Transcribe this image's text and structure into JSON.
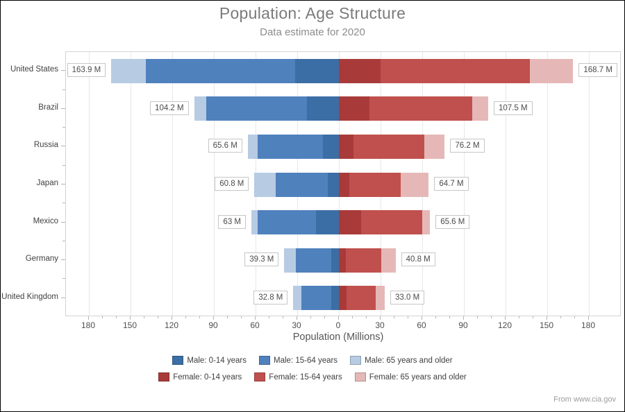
{
  "title": "Population: Age Structure",
  "subtitle": "Data estimate for 2020",
  "attribution": "From www.cia.gov",
  "x_axis": {
    "label": "Population (Millions)",
    "tick_labels": [
      "180",
      "150",
      "120",
      "90",
      "60",
      "30",
      "0",
      "30",
      "60",
      "90",
      "120",
      "150",
      "180"
    ],
    "major_step": 30,
    "minor_step": 10,
    "max_each_side": 180
  },
  "legend": [
    {
      "label": "Male: 0-14 years",
      "color": "#3b6ea5"
    },
    {
      "label": "Male: 15-64 years",
      "color": "#4f81bd"
    },
    {
      "label": "Male: 65 years and older",
      "color": "#b7cbe3"
    },
    {
      "label": "Female: 0-14 years",
      "color": "#a83b39"
    },
    {
      "label": "Female: 15-64 years",
      "color": "#c0504d"
    },
    {
      "label": "Female: 65 years and older",
      "color": "#e5b8b7"
    }
  ],
  "chart_data": {
    "type": "bar",
    "orientation": "horizontal-diverging",
    "title": "Population: Age Structure",
    "subtitle": "Data estimate for 2020",
    "xlabel": "Population (Millions)",
    "xlim_each_side": [
      0,
      180
    ],
    "unit": "millions of people",
    "grid": true,
    "legend_position": "bottom",
    "categories": [
      "United States",
      "Brazil",
      "Russia",
      "Japan",
      "Mexico",
      "Germany",
      "United Kingdom"
    ],
    "series": [
      {
        "name": "Male: 0-14 years",
        "side": "left",
        "values": [
          31.4,
          22.9,
          11.3,
          7.9,
          16.4,
          5.3,
          5.7
        ]
      },
      {
        "name": "Male: 15-64 years",
        "side": "left",
        "values": [
          107.4,
          72.8,
          47.2,
          37.8,
          42.2,
          25.9,
          21.3
        ]
      },
      {
        "name": "Male: 65 years and older",
        "side": "left",
        "values": [
          25.1,
          8.5,
          7.1,
          15.1,
          4.4,
          8.1,
          5.8
        ]
      },
      {
        "name": "Female: 0-14 years",
        "side": "right",
        "values": [
          30.0,
          22.0,
          10.7,
          7.5,
          15.8,
          5.0,
          5.5
        ]
      },
      {
        "name": "Female: 15-64 years",
        "side": "right",
        "values": [
          107.7,
          74.2,
          50.9,
          36.9,
          44.3,
          25.3,
          20.9
        ]
      },
      {
        "name": "Female: 65 years and older",
        "side": "right",
        "values": [
          31.0,
          11.3,
          14.6,
          20.3,
          5.5,
          10.5,
          6.6
        ]
      }
    ],
    "totals": {
      "male_labels": [
        "163.9 M",
        "104.2 M",
        "65.6 M",
        "60.8 M",
        "63 M",
        "39.3 M",
        "32.8 M"
      ],
      "female_labels": [
        "168.7 M",
        "107.5 M",
        "76.2 M",
        "64.7 M",
        "65.6 M",
        "40.8 M",
        "33.0 M"
      ]
    }
  }
}
